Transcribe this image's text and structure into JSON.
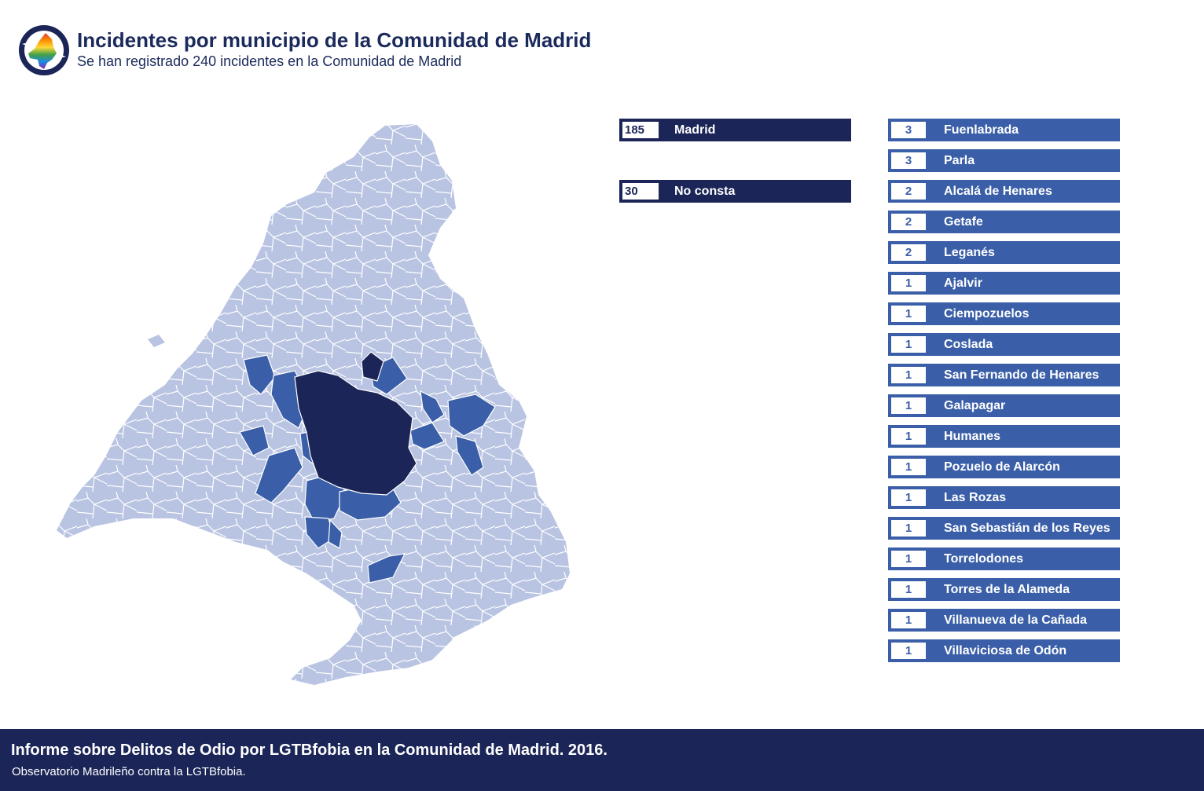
{
  "header": {
    "title": "Incidentes por municipio de la Comunidad de Madrid",
    "subtitle": "Se han registrado 240 incidentes en la Comunidad de Madrid"
  },
  "logo": {
    "icon": "madrid-rainbow-logo-icon"
  },
  "colors": {
    "dark": "#1b2557",
    "medium": "#3a5fa8",
    "light": "#b9c4e2",
    "text": "#1b2a5c"
  },
  "summary_bars": [
    {
      "count": "185",
      "name": "Madrid"
    },
    {
      "count": "30",
      "name": "No consta"
    }
  ],
  "municipality_bars": [
    {
      "count": "3",
      "name": "Fuenlabrada"
    },
    {
      "count": "3",
      "name": "Parla"
    },
    {
      "count": "2",
      "name": "Alcalá de Henares"
    },
    {
      "count": "2",
      "name": "Getafe"
    },
    {
      "count": "2",
      "name": "Leganés"
    },
    {
      "count": "1",
      "name": "Ajalvir"
    },
    {
      "count": "1",
      "name": "Ciempozuelos"
    },
    {
      "count": "1",
      "name": "Coslada"
    },
    {
      "count": "1",
      "name": "San Fernando de Henares"
    },
    {
      "count": "1",
      "name": "Galapagar"
    },
    {
      "count": "1",
      "name": "Humanes"
    },
    {
      "count": "1",
      "name": "Pozuelo de Alarcón"
    },
    {
      "count": "1",
      "name": "Las Rozas"
    },
    {
      "count": "1",
      "name": "San Sebastián de los Reyes"
    },
    {
      "count": "1",
      "name": "Torrelodones"
    },
    {
      "count": "1",
      "name": "Torres de la Alameda"
    },
    {
      "count": "1",
      "name": "Villanueva de la Cañada"
    },
    {
      "count": "1",
      "name": "Villaviciosa de Odón"
    }
  ],
  "footer": {
    "title": "Informe sobre Delitos de Odio por LGTBfobia en la Comunidad de Madrid. 2016.",
    "subtitle": "Observatorio Madrileño contra la LGTBfobia."
  }
}
